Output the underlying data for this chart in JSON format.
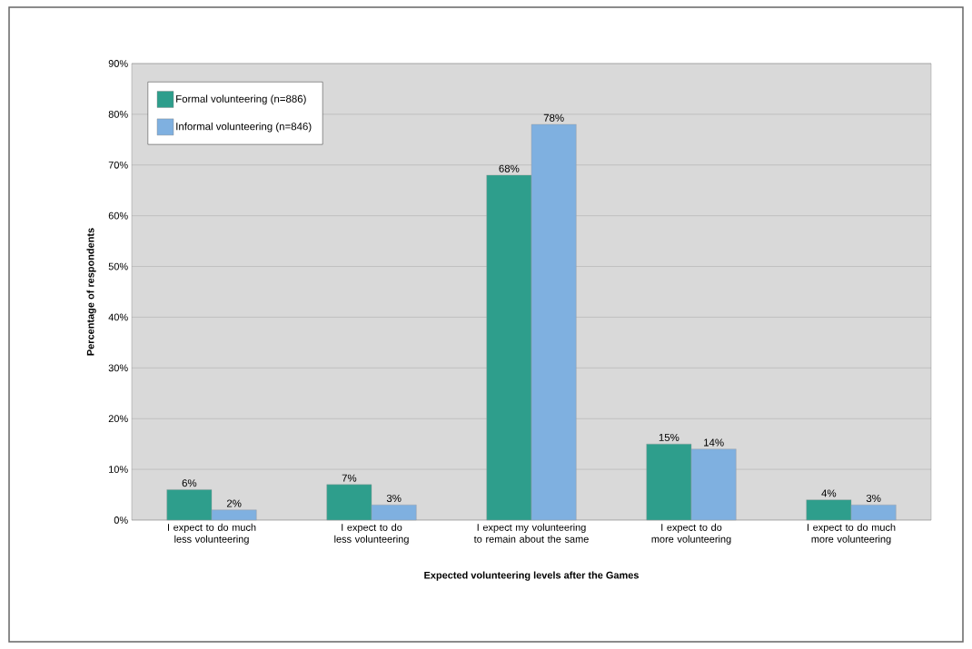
{
  "chart_data": {
    "type": "bar",
    "xlabel": "Expected volunteering levels after the Games",
    "ylabel": "Percentage of respondents",
    "categories": [
      "I expect to do much less volunteering",
      "I expect to do less volunteering",
      "I expect my volunteering to remain about the same",
      "I expect to do more volunteering",
      "I expect to do much more volunteering"
    ],
    "series": [
      {
        "name": "Formal volunteering (n=886)",
        "color": "#2e9e8c",
        "values": [
          6,
          7,
          68,
          15,
          4
        ],
        "value_labels": [
          "6%",
          "7%",
          "68%",
          "15%",
          "4%"
        ]
      },
      {
        "name": "Informal volunteering (n=846)",
        "color": "#7fb0e0",
        "values": [
          2,
          3,
          78,
          14,
          3
        ],
        "value_labels": [
          "2%",
          "3%",
          "78%",
          "14%",
          "3%"
        ]
      }
    ],
    "ylim": [
      0,
      90
    ],
    "yticks": [
      {
        "value": 0,
        "label": "0%"
      },
      {
        "value": 10,
        "label": "10%"
      },
      {
        "value": 20,
        "label": "20%"
      },
      {
        "value": 30,
        "label": "30%"
      },
      {
        "value": 40,
        "label": "40%"
      },
      {
        "value": 50,
        "label": "50%"
      },
      {
        "value": 60,
        "label": "60%"
      },
      {
        "value": 70,
        "label": "70%"
      },
      {
        "value": 80,
        "label": "80%"
      },
      {
        "value": 90,
        "label": "90%"
      }
    ],
    "grid": "y",
    "legend": "top left"
  }
}
